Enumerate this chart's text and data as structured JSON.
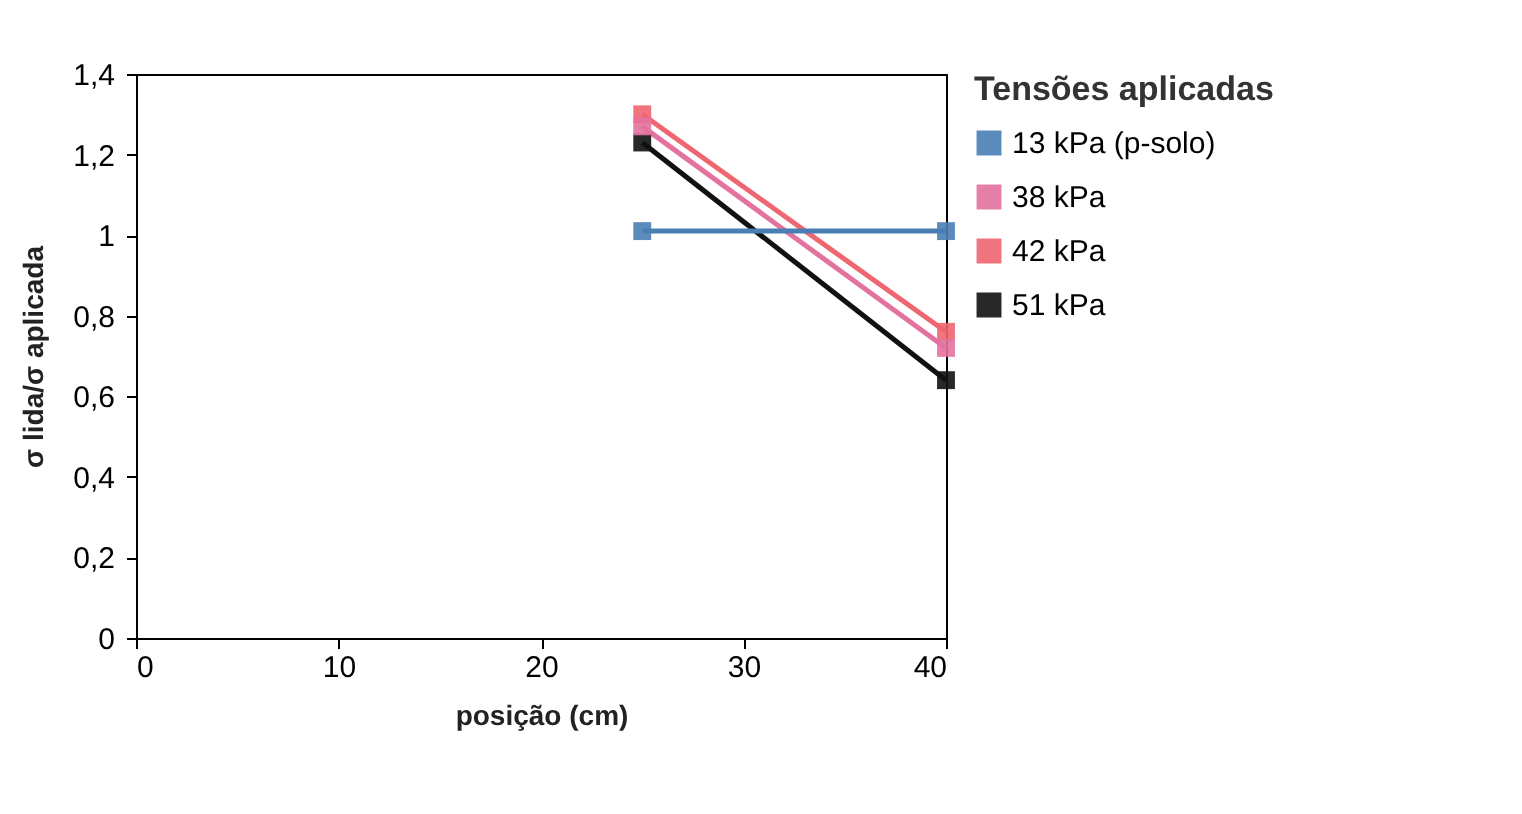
{
  "chart_data": {
    "type": "line",
    "xlabel": "posição (cm)",
    "ylabel": "σ lida/σ aplicada",
    "legend_title": "Tensões aplicadas",
    "x": [
      25,
      40
    ],
    "series": [
      {
        "name": "13 kPa (p-solo)",
        "color": "#4a7fb5",
        "values": [
          1.01,
          1.01
        ]
      },
      {
        "name": "38 kPa",
        "color": "#e4729f",
        "values": [
          1.27,
          0.72
        ]
      },
      {
        "name": "42 kPa",
        "color": "#ee6670",
        "values": [
          1.3,
          0.76
        ]
      },
      {
        "name": "51 kPa",
        "color": "#111111",
        "values": [
          1.23,
          0.64
        ]
      }
    ],
    "xlim": [
      0,
      40
    ],
    "xticks": [
      0,
      10,
      20,
      30,
      40
    ],
    "ylim": [
      0,
      1.4
    ],
    "yticks": [
      0,
      {
        "value": 0.2,
        "label": "0,2"
      },
      {
        "value": 0.4,
        "label": "0,4"
      },
      {
        "value": 0.6,
        "label": "0,6"
      },
      {
        "value": 0.8,
        "label": "0,8"
      },
      1,
      {
        "value": 1.2,
        "label": "1,2"
      },
      {
        "value": 1.4,
        "label": "1,4"
      }
    ],
    "grid": false,
    "legend": "right",
    "marker": "square",
    "line_style": "solid"
  }
}
